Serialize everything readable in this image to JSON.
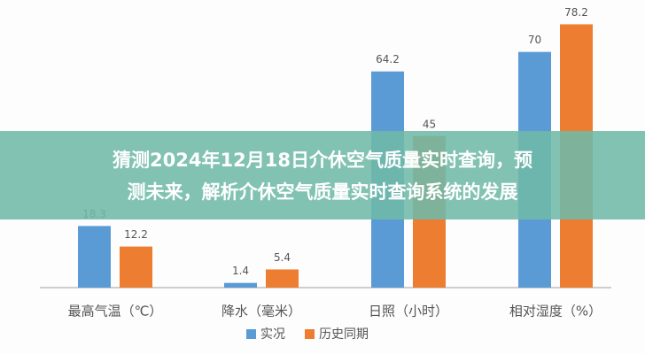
{
  "banner": {
    "lines": [
      "猜测2024年12月18日介休空气质量实时查询，预",
      "测未来，解析介休空气质量实时查询系统的发展"
    ]
  },
  "chart_data": {
    "type": "bar",
    "categories": [
      "最高气温（℃）",
      "降水（毫米）",
      "日照（小时）",
      "相对湿度（%）"
    ],
    "series": [
      {
        "name": "实况",
        "color": "#5b9bd5",
        "values": [
          18.3,
          1.4,
          64.2,
          70
        ]
      },
      {
        "name": "历史同期",
        "color": "#ed7d31",
        "values": [
          12.2,
          5.4,
          45,
          78.2
        ]
      }
    ],
    "ylim": [
      0,
      82
    ]
  }
}
